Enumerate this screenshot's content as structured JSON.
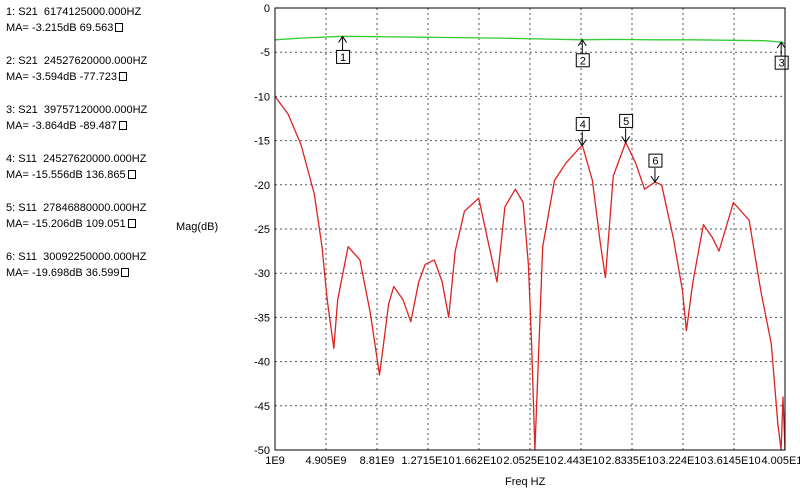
{
  "markers": [
    {
      "id": "1",
      "line1": "1: S21  6174125000.000HZ",
      "line2": "MA= -3.215dB 69.563"
    },
    {
      "id": "2",
      "line1": "2: S21  24527620000.000HZ",
      "line2": "MA= -3.594dB -77.723"
    },
    {
      "id": "3",
      "line1": "3: S21  39757120000.000HZ",
      "line2": "MA= -3.864dB -89.487"
    },
    {
      "id": "4",
      "line1": "4: S11  24527620000.000HZ",
      "line2": "MA= -15.556dB 136.865"
    },
    {
      "id": "5",
      "line1": "5: S11  27846880000.000HZ",
      "line2": "MA= -15.206dB 109.051"
    },
    {
      "id": "6",
      "line1": "6: S11  30092250000.000HZ",
      "line2": "MA= -19.698dB 36.599"
    }
  ],
  "chart_data": {
    "type": "line",
    "xlabel": "Freq HZ",
    "ylabel": "Mag(dB)",
    "xlim": [
      1000000000,
      40050000000
    ],
    "ylim": [
      -50,
      0
    ],
    "x_ticks": [
      1000000000,
      4905000000,
      8810000000,
      12715000000,
      16620000000,
      20525000000,
      24430000000,
      28335000000,
      32240000000,
      36145000000,
      40050000000
    ],
    "x_tick_labels": [
      "1E9",
      "4.905E9",
      "8.81E9",
      "1.2715E10",
      "1.662E10",
      "2.0525E10",
      "2.443E10",
      "2.8335E10",
      "3.224E10",
      "3.6145E10",
      "4.005E10"
    ],
    "y_ticks": [
      0,
      -5,
      -10,
      -15,
      -20,
      -25,
      -30,
      -35,
      -40,
      -45,
      -50
    ],
    "y_tick_labels": [
      "0",
      "-5",
      "-10",
      "-15",
      "-20",
      "-25",
      "-30",
      "-35",
      "-40",
      "-45",
      "-50"
    ],
    "grid": true,
    "series": [
      {
        "color": "#33cc33",
        "x": [
          1000000000.0,
          3000000000.0,
          6170000000.0,
          9000000000.0,
          12000000000.0,
          15000000000.0,
          18000000000.0,
          21000000000.0,
          24500000000.0,
          27000000000.0,
          30000000000.0,
          33000000000.0,
          36000000000.0,
          38500000000.0,
          39760000000.0,
          40050000000.0
        ],
        "y": [
          -3.6,
          -3.4,
          -3.2,
          -3.25,
          -3.3,
          -3.35,
          -3.4,
          -3.5,
          -3.6,
          -3.55,
          -3.6,
          -3.6,
          -3.65,
          -3.7,
          -3.86,
          -4.0
        ]
      },
      {
        "color": "#dd2222",
        "x": [
          1000000000.0,
          2000000000.0,
          3000000000.0,
          4000000000.0,
          4600000000.0,
          5000000000.0,
          5500000000.0,
          5800000000.0,
          6600000000.0,
          7500000000.0,
          8300000000.0,
          9000000000.0,
          9400000000.0,
          9700000000.0,
          10100000000.0,
          10800000000.0,
          11400000000.0,
          12000000000.0,
          12500000000.0,
          13200000000.0,
          13800000000.0,
          14300000000.0,
          14800000000.0,
          15500000000.0,
          16600000000.0,
          17400000000.0,
          18000000000.0,
          18600000000.0,
          19400000000.0,
          20000000000.0,
          20400000000.0,
          20650000000.0,
          20900000000.0,
          21500000000.0,
          22400000000.0,
          23300000000.0,
          24530000000.0,
          25300000000.0,
          25900000000.0,
          26300000000.0,
          26900000000.0,
          27850000000.0,
          28600000000.0,
          29300000000.0,
          30090000000.0,
          30600000000.0,
          31500000000.0,
          32200000000.0,
          32500000000.0,
          33000000000.0,
          33800000000.0,
          34500000000.0,
          35000000000.0,
          36100000000.0,
          37300000000.0,
          38200000000.0,
          39000000000.0,
          39500000000.0,
          39750000000.0,
          39900000000.0,
          40050000000.0
        ],
        "y": [
          -10.0,
          -12.0,
          -15.5,
          -21.0,
          -27.0,
          -33.0,
          -38.5,
          -33.0,
          -27.0,
          -28.5,
          -34.5,
          -41.5,
          -37.0,
          -33.5,
          -31.5,
          -33.0,
          -35.5,
          -31.0,
          -29.0,
          -28.5,
          -31.0,
          -35.0,
          -27.5,
          -23.0,
          -21.5,
          -27.0,
          -31.0,
          -22.5,
          -20.5,
          -22.0,
          -29.0,
          -38.0,
          -50.0,
          -27.0,
          -19.5,
          -17.5,
          -15.5,
          -19.5,
          -26.5,
          -30.5,
          -19.0,
          -15.2,
          -17.5,
          -20.5,
          -19.7,
          -20.0,
          -26.0,
          -32.0,
          -36.5,
          -31.0,
          -24.5,
          -26.0,
          -27.5,
          -22.0,
          -24.0,
          -32.0,
          -38.0,
          -47.0,
          -50.0,
          -44.0,
          -50.0
        ]
      }
    ],
    "marker_points": [
      {
        "label": "1",
        "x": 6174125000,
        "y": -3.215
      },
      {
        "label": "2",
        "x": 24527620000,
        "y": -3.594
      },
      {
        "label": "3",
        "x": 39757120000,
        "y": -3.864
      },
      {
        "label": "4",
        "x": 24527620000,
        "y": -15.556
      },
      {
        "label": "5",
        "x": 27846880000,
        "y": -15.206
      },
      {
        "label": "6",
        "x": 30092250000,
        "y": -19.698
      }
    ]
  }
}
